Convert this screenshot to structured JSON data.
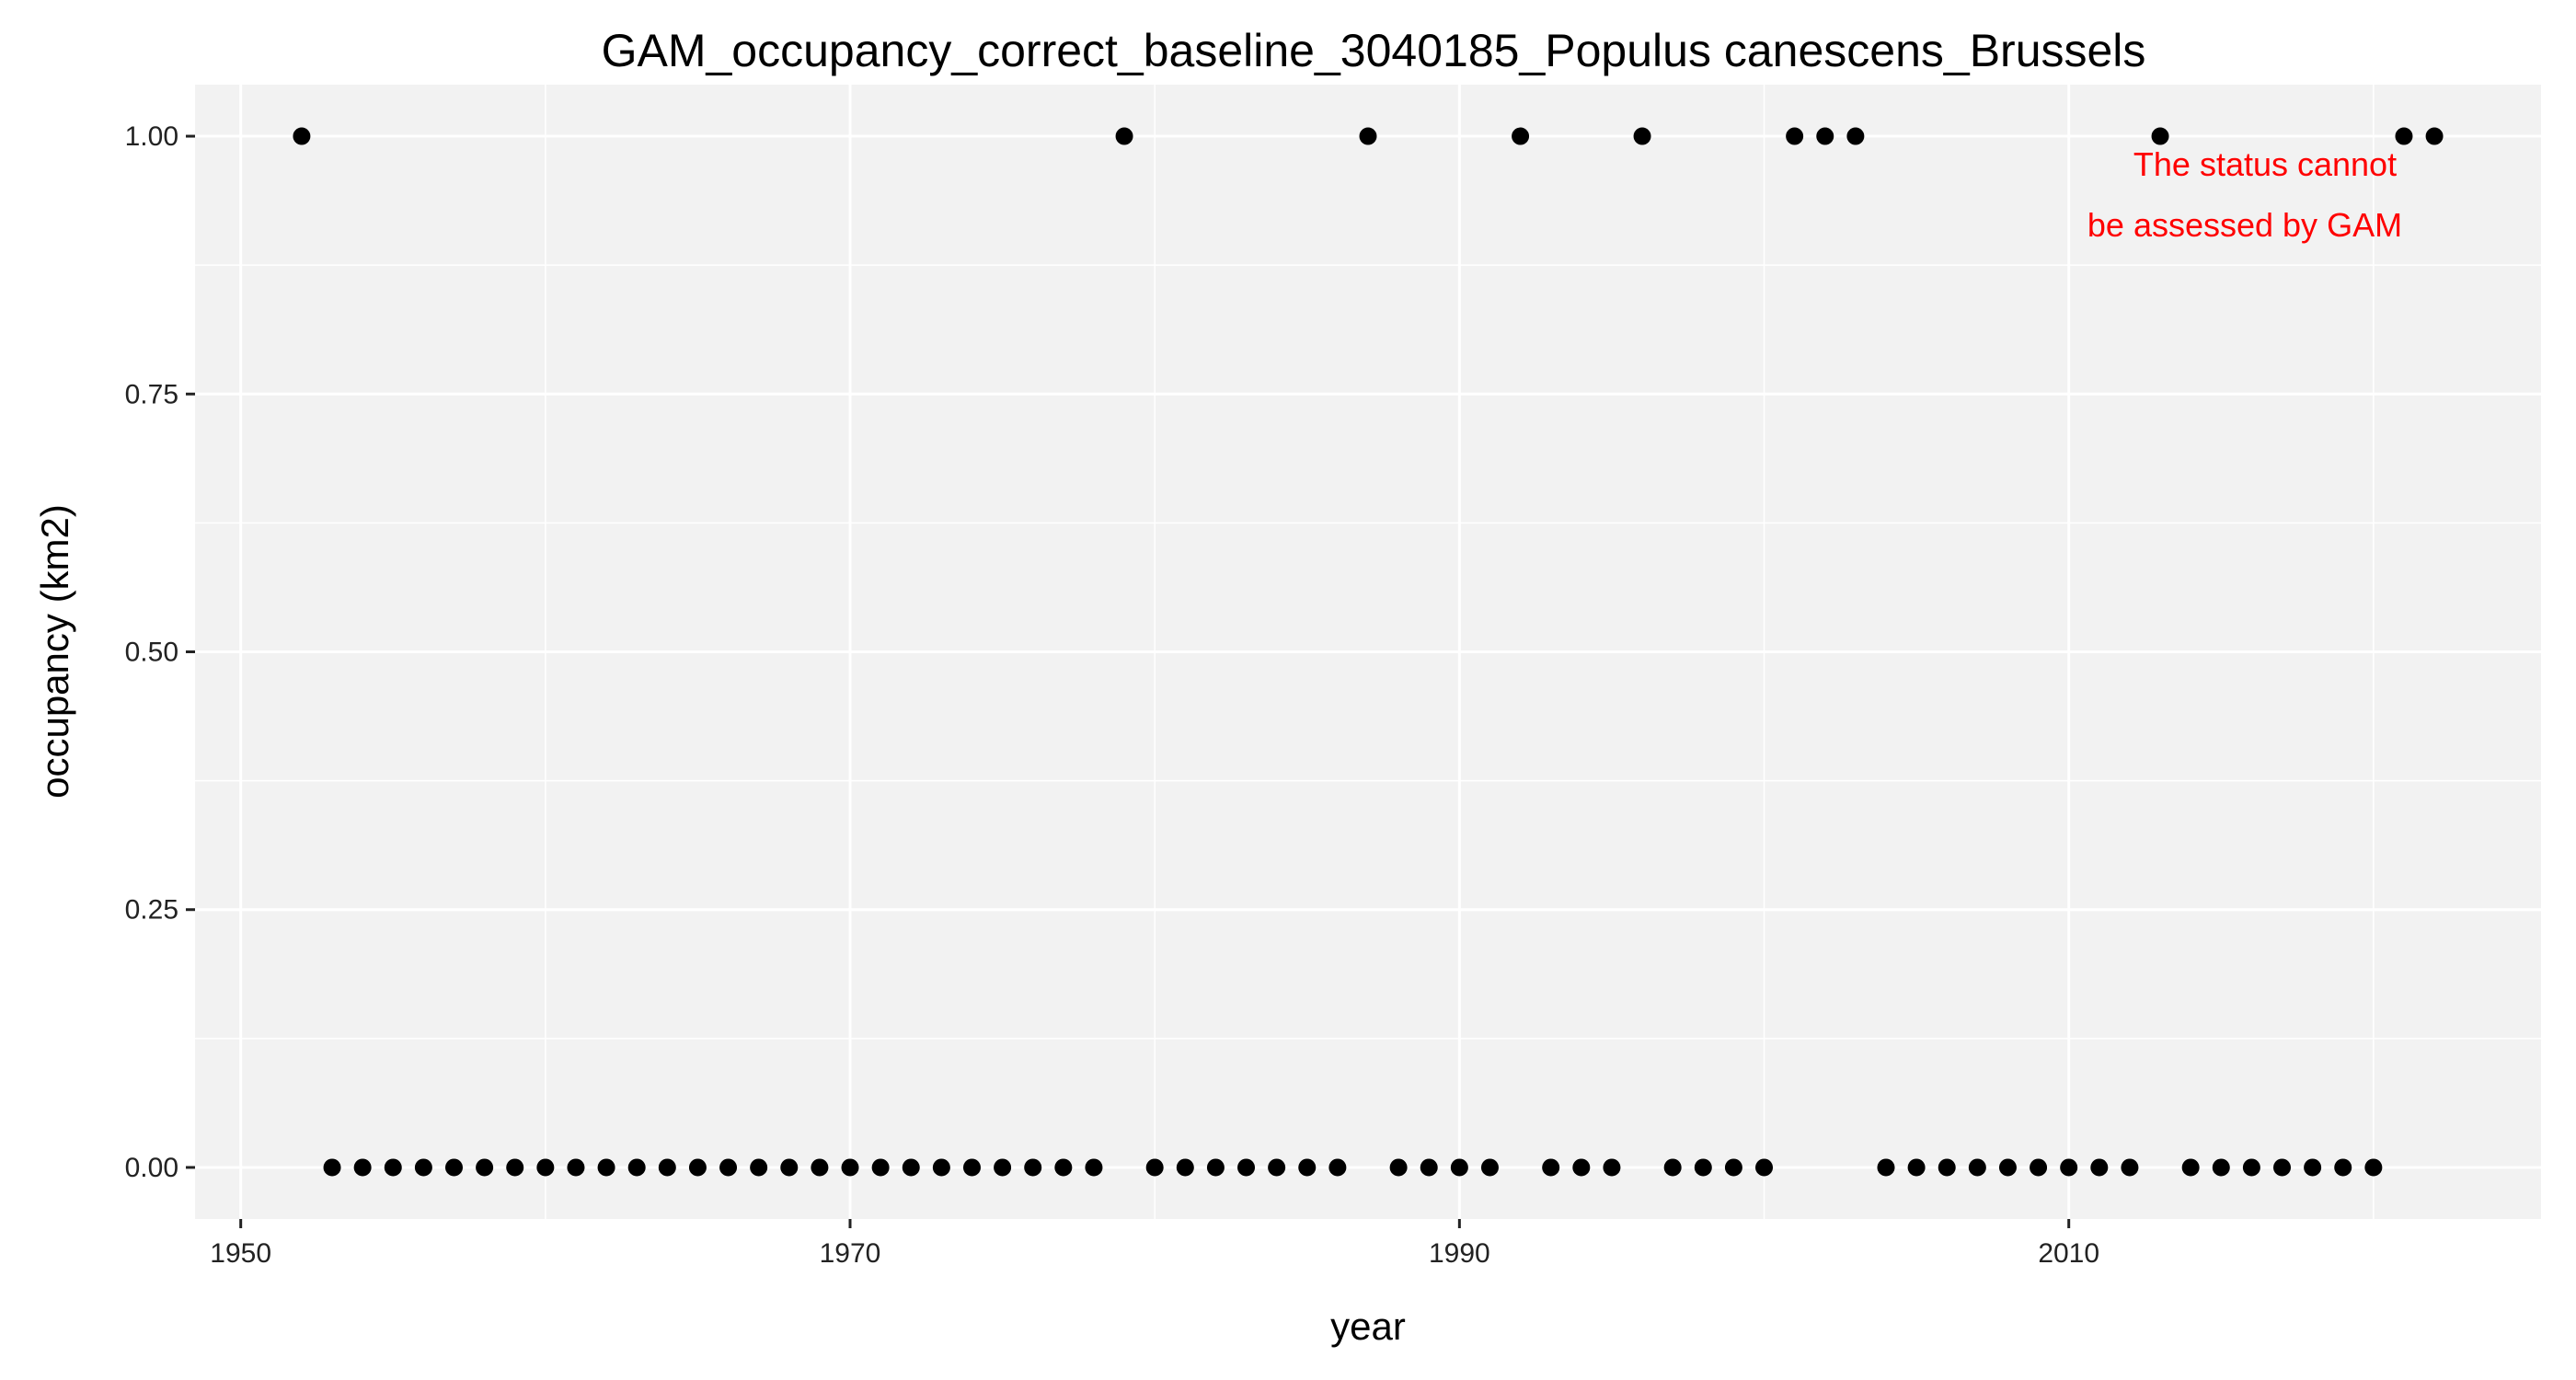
{
  "chart_data": {
    "type": "scatter",
    "title": "GAM_occupancy_correct_baseline_3040185_Populus canescens_Brussels",
    "xlabel": "year",
    "ylabel": "occupancy (km2)",
    "xlim": [
      1948.5,
      2025.5
    ],
    "ylim": [
      -0.05,
      1.05
    ],
    "x_ticks": [
      1950,
      1970,
      1990,
      2010
    ],
    "x_tick_labels": [
      "1950",
      "1970",
      "1990",
      "2010"
    ],
    "y_ticks": [
      0,
      0.25,
      0.5,
      0.75,
      1
    ],
    "y_tick_labels": [
      "0.00",
      "0.25",
      "0.50",
      "0.75",
      "1.00"
    ],
    "grid": true,
    "background_color": "#f2f2f2",
    "point_color": "#000000",
    "series": [
      {
        "points": [
          [
            1952,
            1
          ],
          [
            1953,
            0
          ],
          [
            1954,
            0
          ],
          [
            1955,
            0
          ],
          [
            1956,
            0
          ],
          [
            1957,
            0
          ],
          [
            1958,
            0
          ],
          [
            1959,
            0
          ],
          [
            1960,
            0
          ],
          [
            1961,
            0
          ],
          [
            1962,
            0
          ],
          [
            1963,
            0
          ],
          [
            1964,
            0
          ],
          [
            1965,
            0
          ],
          [
            1966,
            0
          ],
          [
            1967,
            0
          ],
          [
            1968,
            0
          ],
          [
            1969,
            0
          ],
          [
            1970,
            0
          ],
          [
            1971,
            0
          ],
          [
            1972,
            0
          ],
          [
            1973,
            0
          ],
          [
            1974,
            0
          ],
          [
            1975,
            0
          ],
          [
            1976,
            0
          ],
          [
            1977,
            0
          ],
          [
            1978,
            0
          ],
          [
            1979,
            1
          ],
          [
            1980,
            0
          ],
          [
            1981,
            0
          ],
          [
            1982,
            0
          ],
          [
            1983,
            0
          ],
          [
            1984,
            0
          ],
          [
            1985,
            0
          ],
          [
            1986,
            0
          ],
          [
            1987,
            1
          ],
          [
            1988,
            0
          ],
          [
            1989,
            0
          ],
          [
            1990,
            0
          ],
          [
            1991,
            0
          ],
          [
            1992,
            1
          ],
          [
            1993,
            0
          ],
          [
            1994,
            0
          ],
          [
            1995,
            0
          ],
          [
            1996,
            1
          ],
          [
            1997,
            0
          ],
          [
            1998,
            0
          ],
          [
            1999,
            0
          ],
          [
            2000,
            0
          ],
          [
            2001,
            1
          ],
          [
            2002,
            1
          ],
          [
            2003,
            1
          ],
          [
            2004,
            0
          ],
          [
            2005,
            0
          ],
          [
            2006,
            0
          ],
          [
            2007,
            0
          ],
          [
            2008,
            0
          ],
          [
            2009,
            0
          ],
          [
            2010,
            0
          ],
          [
            2011,
            0
          ],
          [
            2012,
            0
          ],
          [
            2013,
            1
          ],
          [
            2014,
            0
          ],
          [
            2015,
            0
          ],
          [
            2016,
            0
          ],
          [
            2017,
            0
          ],
          [
            2018,
            0
          ],
          [
            2019,
            0
          ],
          [
            2020,
            0
          ],
          [
            2021,
            1
          ],
          [
            2022,
            1
          ]
        ]
      }
    ],
    "annotation": {
      "lines": [
        "The status cannot",
        "be assessed by GAM"
      ],
      "color": "#ff0000",
      "placement": "top-right"
    }
  }
}
